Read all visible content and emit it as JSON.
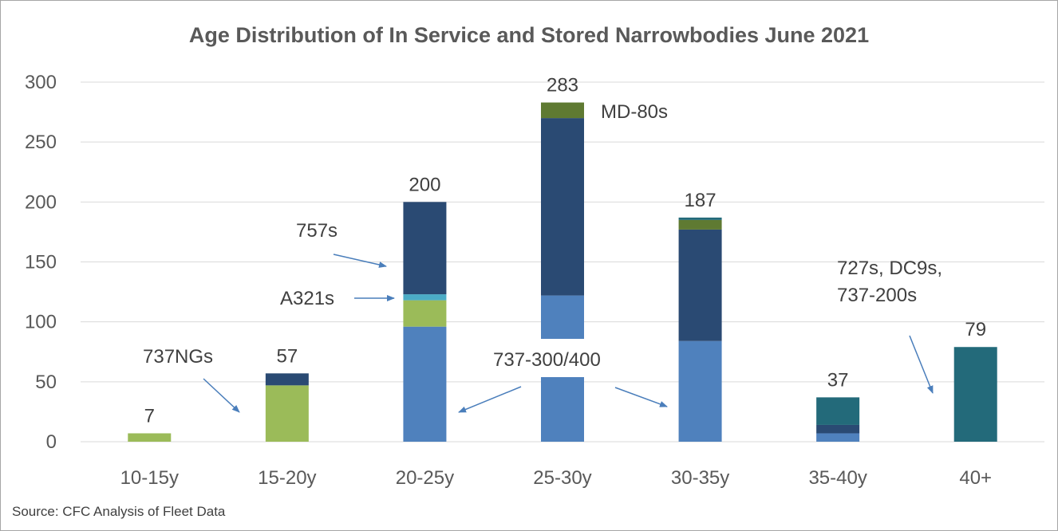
{
  "chart_data": {
    "type": "bar",
    "stacked": true,
    "title": "Age Distribution of In Service and Stored Narrowbodies June 2021",
    "categories": [
      "10-15y",
      "15-20y",
      "20-25y",
      "25-30y",
      "30-35y",
      "35-40y",
      "40+"
    ],
    "ylim": [
      0,
      300
    ],
    "yticks": [
      0,
      50,
      100,
      150,
      200,
      250,
      300
    ],
    "grid": true,
    "totals": [
      "7",
      "57",
      "200",
      "283",
      "187",
      "37",
      "79"
    ],
    "series": [
      {
        "color": "#4f81bd",
        "values": [
          0,
          0,
          96,
          122,
          84,
          7,
          0
        ]
      },
      {
        "color": "#9bbb59",
        "values": [
          7,
          47,
          22,
          0,
          0,
          0,
          0
        ]
      },
      {
        "color": "#4bacc6",
        "values": [
          0,
          0,
          5,
          0,
          0,
          0,
          0
        ]
      },
      {
        "color": "#2a4a73",
        "values": [
          0,
          10,
          77,
          148,
          93,
          7,
          0
        ]
      },
      {
        "color": "#5f7a32",
        "values": [
          0,
          0,
          0,
          13,
          8,
          0,
          0
        ]
      },
      {
        "color": "#236a7a",
        "values": [
          0,
          0,
          0,
          0,
          2,
          23,
          79
        ]
      }
    ],
    "annotations": [
      "737NGs",
      "757s",
      "A321s",
      "737-300/400",
      "MD-80s",
      "727s, DC9s,",
      "737-200s"
    ],
    "source": "Source: CFC Analysis of Fleet Data"
  }
}
